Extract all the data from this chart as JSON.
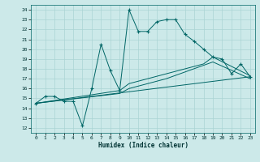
{
  "xlabel": "Humidex (Indice chaleur)",
  "bg_color": "#cce9e9",
  "grid_color": "#aad4d4",
  "line_color": "#006666",
  "xlim": [
    -0.5,
    23.5
  ],
  "ylim": [
    11.5,
    24.5
  ],
  "xticks": [
    0,
    1,
    2,
    3,
    4,
    5,
    6,
    7,
    8,
    9,
    10,
    11,
    12,
    13,
    14,
    15,
    16,
    17,
    18,
    19,
    20,
    21,
    22,
    23
  ],
  "yticks": [
    12,
    13,
    14,
    15,
    16,
    17,
    18,
    19,
    20,
    21,
    22,
    23,
    24
  ],
  "series1_x": [
    0,
    1,
    2,
    3,
    4,
    5,
    6,
    7,
    8,
    9,
    10,
    11,
    12,
    13,
    14,
    15,
    16,
    17,
    18,
    19,
    20,
    21,
    22,
    23
  ],
  "series1_y": [
    14.5,
    15.2,
    15.2,
    14.7,
    14.7,
    12.2,
    16.0,
    20.5,
    17.8,
    15.8,
    24.0,
    21.8,
    21.8,
    22.8,
    23.0,
    23.0,
    21.5,
    20.8,
    20.0,
    19.2,
    19.0,
    17.5,
    18.5,
    17.2
  ],
  "series2_x": [
    0,
    23
  ],
  "series2_y": [
    14.5,
    17.2
  ],
  "series3_x": [
    0,
    9,
    10,
    14,
    18,
    19,
    23
  ],
  "series3_y": [
    14.5,
    15.8,
    16.5,
    17.5,
    18.5,
    19.2,
    17.3
  ],
  "series4_x": [
    0,
    9,
    10,
    14,
    19,
    23
  ],
  "series4_y": [
    14.5,
    15.5,
    16.0,
    17.0,
    18.7,
    17.0
  ]
}
